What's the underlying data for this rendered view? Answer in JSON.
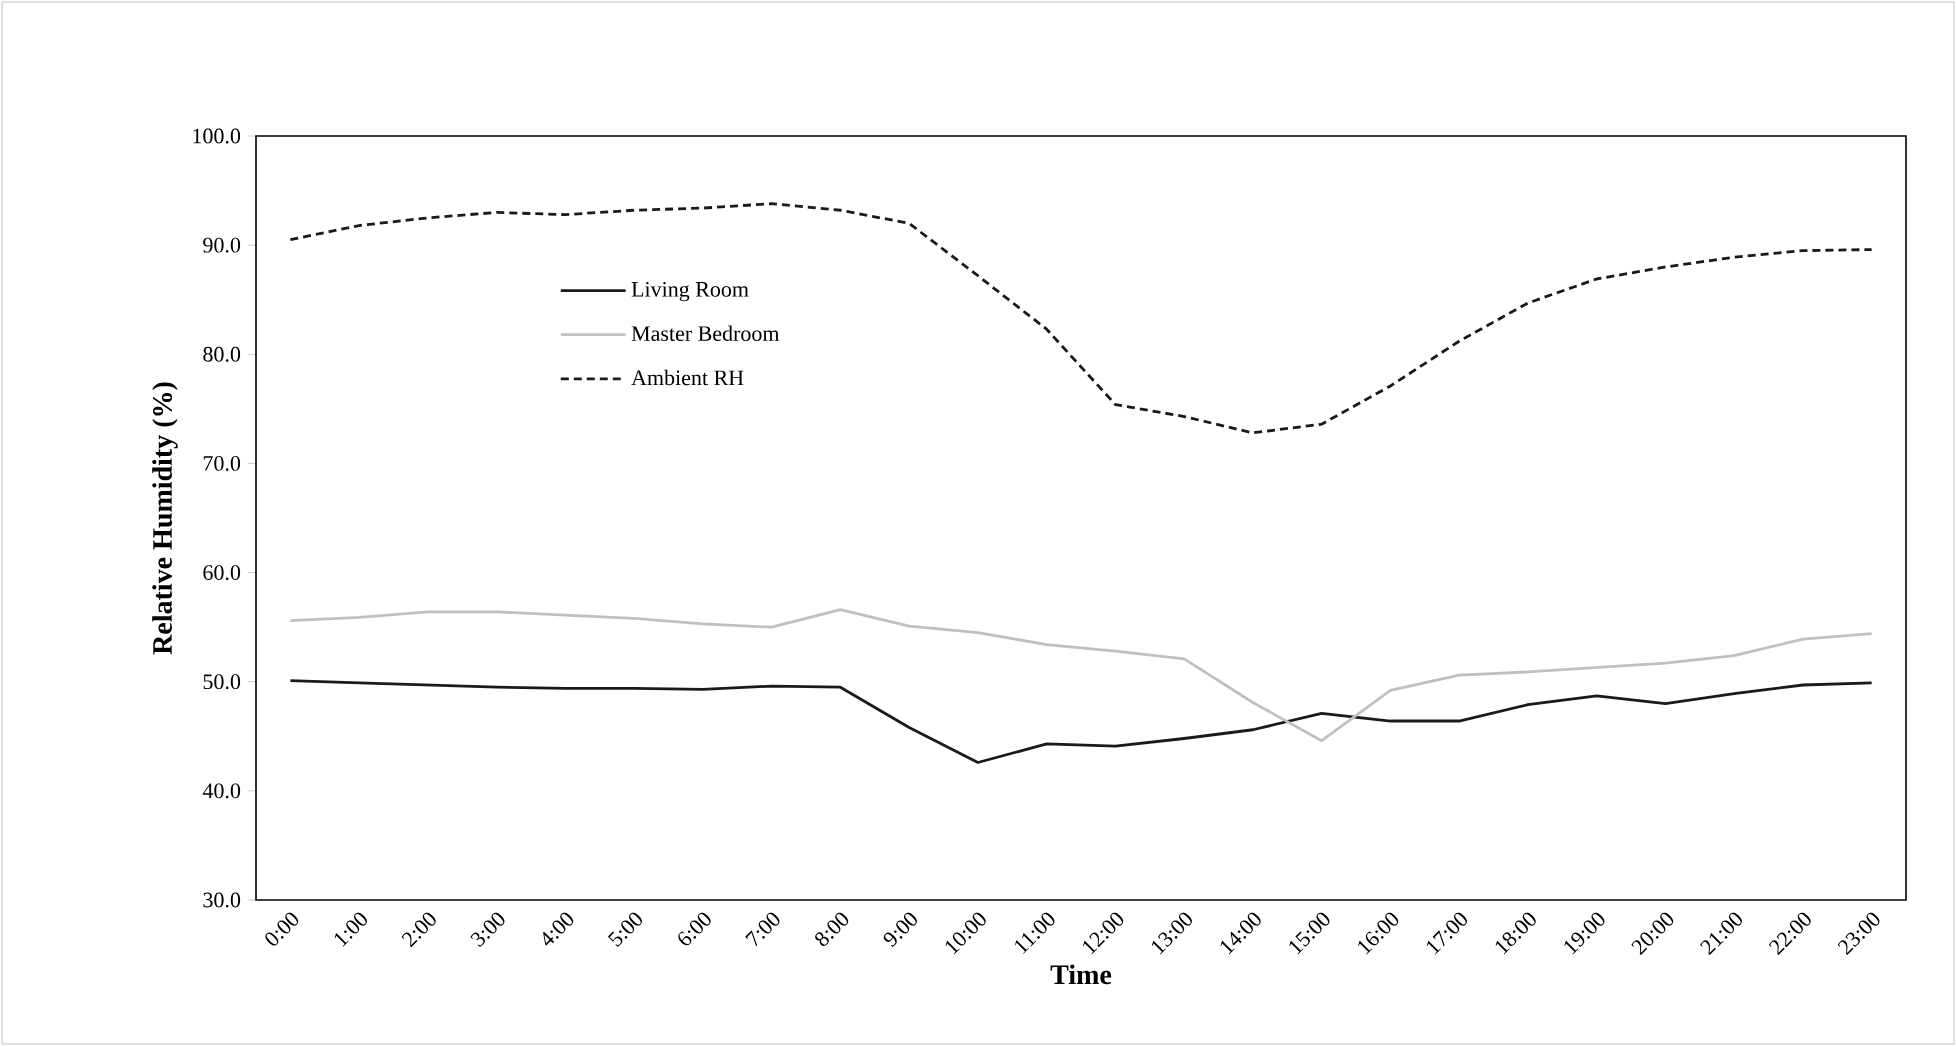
{
  "chart_data": {
    "type": "line",
    "xlabel": "Time",
    "ylabel": "Relative Humidity (%)",
    "categories": [
      "0:00",
      "1:00",
      "2:00",
      "3:00",
      "4:00",
      "5:00",
      "6:00",
      "7:00",
      "8:00",
      "9:00",
      "10:00",
      "11:00",
      "12:00",
      "13:00",
      "14:00",
      "15:00",
      "16:00",
      "17:00",
      "18:00",
      "19:00",
      "20:00",
      "21:00",
      "22:00",
      "23:00"
    ],
    "series": [
      {
        "name": "Living Room",
        "color": "#1a1a1a",
        "line_style": "solid",
        "values": [
          50.1,
          49.9,
          49.7,
          49.5,
          49.4,
          49.4,
          49.3,
          49.6,
          49.5,
          45.8,
          42.6,
          44.3,
          44.1,
          44.8,
          45.6,
          47.1,
          46.4,
          46.4,
          47.9,
          48.7,
          48.0,
          48.9,
          49.7,
          49.9
        ]
      },
      {
        "name": "Master Bedroom",
        "color": "#c0c0c0",
        "line_style": "solid",
        "values": [
          55.6,
          55.9,
          56.4,
          56.4,
          56.1,
          55.8,
          55.3,
          55.0,
          56.6,
          55.1,
          54.5,
          53.4,
          52.8,
          52.1,
          48.1,
          44.6,
          49.2,
          50.6,
          50.9,
          51.3,
          51.7,
          52.4,
          53.9,
          54.4
        ]
      },
      {
        "name": "Ambient RH",
        "color": "#1a1a1a",
        "line_style": "dashed",
        "values": [
          90.5,
          91.8,
          92.5,
          93.0,
          92.8,
          93.2,
          93.4,
          93.8,
          93.2,
          92.0,
          87.2,
          82.3,
          75.4,
          74.3,
          72.8,
          73.6,
          77.1,
          81.2,
          84.7,
          86.9,
          88.0,
          88.9,
          89.5,
          89.6
        ]
      }
    ],
    "ylim": [
      30,
      100
    ],
    "yticks": [
      {
        "value": 30,
        "label": "30.0"
      },
      {
        "value": 40,
        "label": "40.0"
      },
      {
        "value": 50,
        "label": "50.0"
      },
      {
        "value": 60,
        "label": "60.0"
      },
      {
        "value": 70,
        "label": "70.0"
      },
      {
        "value": 80,
        "label": "80.0"
      },
      {
        "value": 90,
        "label": "90.0"
      },
      {
        "value": 100,
        "label": "100.0"
      }
    ],
    "grid": false,
    "legend": "top left",
    "marker": "none"
  }
}
